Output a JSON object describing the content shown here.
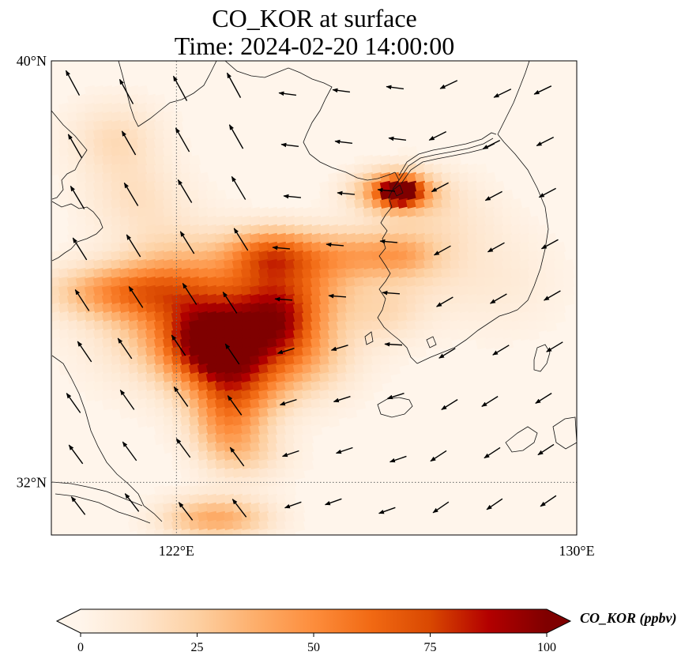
{
  "title": {
    "line1": "CO_KOR at surface",
    "line2": "Time: 2024-02-20 14:00:00"
  },
  "map": {
    "lon_range": [
      119.5,
      130.0
    ],
    "lat_range": [
      31.0,
      40.0
    ],
    "lon_ticks": [
      {
        "value": 122,
        "label": "122°E"
      },
      {
        "value": 130,
        "label": "130°E"
      }
    ],
    "lat_ticks": [
      {
        "value": 40,
        "label": "40°N"
      },
      {
        "value": 32,
        "label": "32°N"
      }
    ],
    "gridlines": "dotted",
    "field": {
      "variable": "CO_KOR",
      "blobs": [
        {
          "lon": 120.9,
          "lat": 35.6,
          "rx": 1.4,
          "ry": 0.5,
          "peak": 40
        },
        {
          "lon": 122.6,
          "lat": 35.0,
          "rx": 1.8,
          "ry": 1.1,
          "peak": 48
        },
        {
          "lon": 122.0,
          "lat": 36.0,
          "rx": 1.1,
          "ry": 0.9,
          "peak": 20
        },
        {
          "lon": 122.7,
          "lat": 34.6,
          "rx": 0.9,
          "ry": 0.7,
          "peak": 65
        },
        {
          "lon": 120.8,
          "lat": 38.5,
          "rx": 0.9,
          "ry": 0.7,
          "peak": 18
        },
        {
          "lon": 121.2,
          "lat": 37.4,
          "rx": 1.0,
          "ry": 0.7,
          "peak": 14
        },
        {
          "lon": 123.9,
          "lat": 36.3,
          "rx": 0.9,
          "ry": 0.5,
          "peak": 55
        },
        {
          "lon": 124.3,
          "lat": 35.6,
          "rx": 1.2,
          "ry": 0.6,
          "peak": 38
        },
        {
          "lon": 124.4,
          "lat": 34.4,
          "rx": 1.1,
          "ry": 0.8,
          "peak": 32
        },
        {
          "lon": 124.0,
          "lat": 35.0,
          "rx": 0.8,
          "ry": 0.6,
          "peak": 40
        },
        {
          "lon": 125.4,
          "lat": 36.3,
          "rx": 1.1,
          "ry": 0.5,
          "peak": 35
        },
        {
          "lon": 126.5,
          "lat": 36.3,
          "rx": 0.7,
          "ry": 0.4,
          "peak": 22
        },
        {
          "lon": 126.2,
          "lat": 35.2,
          "rx": 0.8,
          "ry": 0.6,
          "peak": 15
        },
        {
          "lon": 123.2,
          "lat": 33.8,
          "rx": 0.9,
          "ry": 0.8,
          "peak": 45
        },
        {
          "lon": 123.0,
          "lat": 33.0,
          "rx": 0.7,
          "ry": 0.7,
          "peak": 28
        },
        {
          "lon": 123.5,
          "lat": 32.5,
          "rx": 0.8,
          "ry": 0.5,
          "peak": 15
        },
        {
          "lon": 123.1,
          "lat": 31.3,
          "rx": 0.9,
          "ry": 0.4,
          "peak": 30
        },
        {
          "lon": 122.3,
          "lat": 31.3,
          "rx": 0.8,
          "ry": 0.4,
          "peak": 18
        },
        {
          "lon": 126.4,
          "lat": 37.5,
          "rx": 0.8,
          "ry": 0.4,
          "peak": 60
        },
        {
          "lon": 126.5,
          "lat": 37.5,
          "rx": 0.35,
          "ry": 0.22,
          "peak": 95
        },
        {
          "lon": 127.3,
          "lat": 37.0,
          "rx": 1.1,
          "ry": 0.8,
          "peak": 12
        },
        {
          "lon": 127.0,
          "lat": 36.0,
          "rx": 1.0,
          "ry": 0.8,
          "peak": 10
        },
        {
          "lon": 128.5,
          "lat": 35.8,
          "rx": 1.2,
          "ry": 1.0,
          "peak": 8
        }
      ]
    }
  },
  "colorbar": {
    "label": "CO_KOR (ppbv)",
    "ticks": [
      {
        "value": 0,
        "label": "0"
      },
      {
        "value": 25,
        "label": "25"
      },
      {
        "value": 50,
        "label": "50"
      },
      {
        "value": 75,
        "label": "75"
      },
      {
        "value": 100,
        "label": "100"
      }
    ],
    "vmin": 0,
    "vmax": 100,
    "colors": [
      "#fff5eb",
      "#fee6ce",
      "#fdd0a2",
      "#fdae6b",
      "#fd8d3c",
      "#f16913",
      "#d94801",
      "#b30000",
      "#7f0000"
    ],
    "extend": "both"
  }
}
